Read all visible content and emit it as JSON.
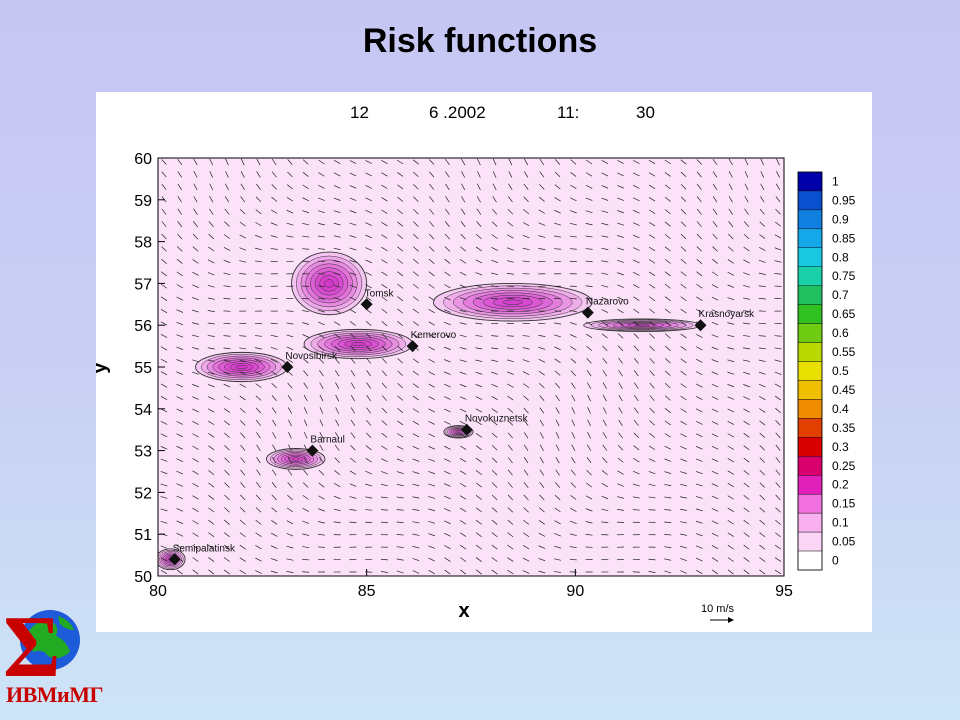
{
  "slide": {
    "title": "Risk functions"
  },
  "logo": {
    "text": "ИВМиМГ",
    "symbol": "Σ",
    "icon": "globe-sigma-logo",
    "colors": {
      "sigma": "#c80000",
      "globe_land": "#22aa22",
      "globe_sea": "#1e5bd8"
    }
  },
  "chart_data": {
    "type": "heatmap",
    "header": {
      "day": "12",
      "date": "6 .2002",
      "hour": "11:",
      "minute": "30"
    },
    "xlabel": "x",
    "ylabel": "y",
    "xlim": [
      80,
      95
    ],
    "ylim": [
      50,
      60
    ],
    "xticks": [
      80,
      85,
      90,
      95
    ],
    "yticks": [
      50,
      51,
      52,
      53,
      54,
      55,
      56,
      57,
      58,
      59,
      60
    ],
    "colorbar": {
      "levels": [
        1,
        0.95,
        0.9,
        0.85,
        0.8,
        0.75,
        0.7,
        0.65,
        0.6,
        0.55,
        0.5,
        0.45,
        0.4,
        0.35,
        0.3,
        0.25,
        0.2,
        0.15,
        0.1,
        0.05,
        0
      ],
      "colors": [
        "#0000aa",
        "#0b4fd1",
        "#0f7fe0",
        "#14a8e8",
        "#18c8e0",
        "#1ad0a8",
        "#20c060",
        "#30c020",
        "#70cc10",
        "#b8d800",
        "#e8e000",
        "#f0c000",
        "#f08c00",
        "#e04000",
        "#d80000",
        "#d8006c",
        "#e020b8",
        "#f070e0",
        "#f8b0f0",
        "#fbd6f7",
        "#ffffff"
      ]
    },
    "background_color": "#fbe2f8",
    "cities": [
      {
        "name": "Tomsk",
        "x": 85.0,
        "y": 56.5
      },
      {
        "name": "Nazarovo",
        "x": 90.3,
        "y": 56.3
      },
      {
        "name": "Krasnoyarsk",
        "x": 93.0,
        "y": 56.0
      },
      {
        "name": "Kemerovo",
        "x": 86.1,
        "y": 55.5
      },
      {
        "name": "Novosibirsk",
        "x": 83.1,
        "y": 55.0
      },
      {
        "name": "Novokuznetsk",
        "x": 87.4,
        "y": 53.5
      },
      {
        "name": "Barnaul",
        "x": 83.7,
        "y": 53.0
      },
      {
        "name": "Semipalatinsk",
        "x": 80.4,
        "y": 50.4
      }
    ],
    "plumes": [
      {
        "source": "Tomsk",
        "peak": 0.28,
        "cx": 84.1,
        "cy": 57.0,
        "rx": 0.9,
        "ry": 0.75
      },
      {
        "source": "Nazarovo",
        "peak": 0.2,
        "cx": 88.5,
        "cy": 56.55,
        "rx": 1.9,
        "ry": 0.45
      },
      {
        "source": "Krasnoyarsk",
        "peak": 0.12,
        "cx": 91.6,
        "cy": 56.0,
        "rx": 1.4,
        "ry": 0.15
      },
      {
        "source": "Kemerovo",
        "peak": 0.25,
        "cx": 84.8,
        "cy": 55.55,
        "rx": 1.3,
        "ry": 0.35
      },
      {
        "source": "Novosibirsk",
        "peak": 0.3,
        "cx": 82.0,
        "cy": 55.0,
        "rx": 1.1,
        "ry": 0.35
      },
      {
        "source": "Novokuznetsk",
        "peak": 0.15,
        "cx": 87.2,
        "cy": 53.45,
        "rx": 0.35,
        "ry": 0.15
      },
      {
        "source": "Barnaul",
        "peak": 0.18,
        "cx": 83.3,
        "cy": 52.8,
        "rx": 0.7,
        "ry": 0.25
      },
      {
        "source": "Semipalatinsk",
        "peak": 0.2,
        "cx": 80.3,
        "cy": 50.4,
        "rx": 0.35,
        "ry": 0.25
      }
    ],
    "wind_reference": {
      "label": "10 m/s"
    }
  }
}
